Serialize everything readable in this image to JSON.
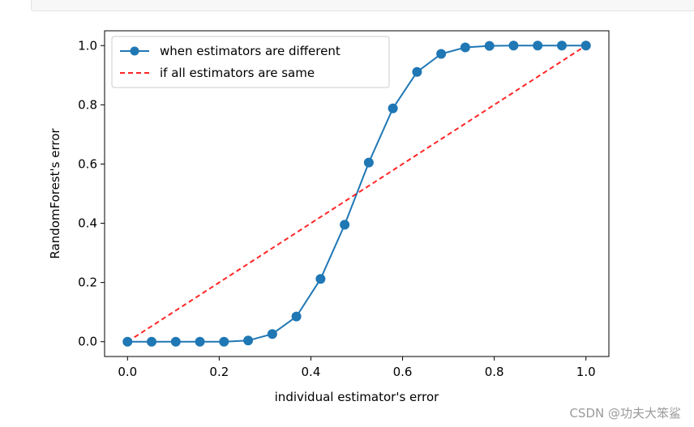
{
  "chart_data": {
    "type": "line",
    "title": "",
    "xlabel": "individual estimator's error",
    "ylabel": "RandomForest's error",
    "xlim": [
      -0.05,
      1.05
    ],
    "ylim": [
      -0.05,
      1.05
    ],
    "xticks": [
      0.0,
      0.2,
      0.4,
      0.6,
      0.8,
      1.0
    ],
    "xtick_labels": [
      "0.0",
      "0.2",
      "0.4",
      "0.6",
      "0.8",
      "1.0"
    ],
    "yticks": [
      0.0,
      0.2,
      0.4,
      0.6,
      0.8,
      1.0
    ],
    "ytick_labels": [
      "0.0",
      "0.2",
      "0.4",
      "0.6",
      "0.8",
      "1.0"
    ],
    "grid": false,
    "legend_position": "top-left",
    "series": [
      {
        "name": "when estimators are different",
        "style": "solid line with circle markers",
        "color": "#1f77b4",
        "x": [
          0.0,
          0.0526,
          0.1053,
          0.1579,
          0.2105,
          0.2632,
          0.3158,
          0.3684,
          0.4211,
          0.4737,
          0.5263,
          0.5789,
          0.6316,
          0.6842,
          0.7368,
          0.7895,
          0.8421,
          0.8947,
          0.9474,
          1.0
        ],
        "y": [
          0.0,
          0.0,
          0.0,
          0.0,
          0.0,
          0.004,
          0.026,
          0.085,
          0.212,
          0.395,
          0.605,
          0.788,
          0.911,
          0.972,
          0.994,
          0.999,
          1.0,
          1.0,
          1.0,
          1.0
        ]
      },
      {
        "name": "if all estimators are same",
        "style": "dashed line",
        "color": "#ff0000",
        "x": [
          0.0,
          1.0
        ],
        "y": [
          0.0,
          1.0
        ]
      }
    ]
  },
  "watermark": {
    "text": "CSDN @功夫大笨鲨"
  }
}
